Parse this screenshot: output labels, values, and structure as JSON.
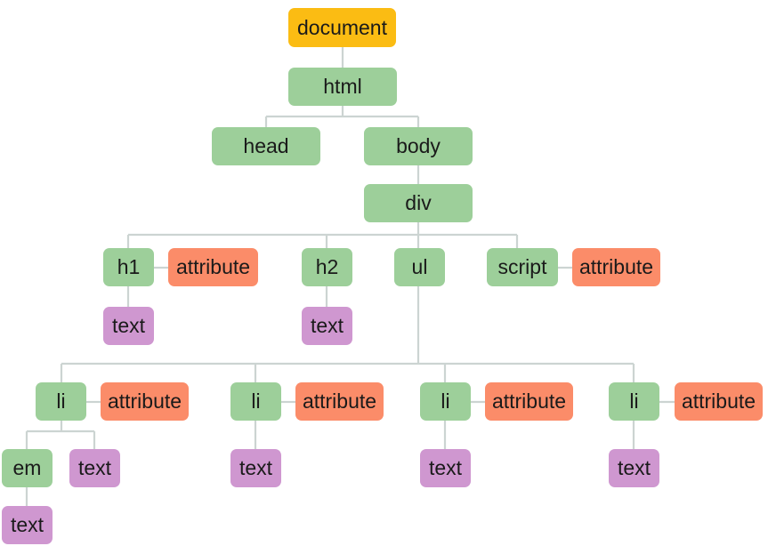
{
  "colors": {
    "document": "#fbbc13",
    "element": "#9dcf9a",
    "attribute": "#fb8c69",
    "text": "#cf97d0",
    "connector": "#ccd4d2"
  },
  "nodes": {
    "document": "document",
    "html": "html",
    "head": "head",
    "body": "body",
    "div": "div",
    "h1": "h1",
    "h1_attribute": "attribute",
    "h1_text": "text",
    "h2": "h2",
    "h2_text": "text",
    "ul": "ul",
    "script": "script",
    "script_attribute": "attribute",
    "li1": "li",
    "li1_attribute": "attribute",
    "em": "em",
    "em_text": "text",
    "li1_text": "text",
    "li2": "li",
    "li2_attribute": "attribute",
    "li2_text": "text",
    "li3": "li",
    "li3_attribute": "attribute",
    "li3_text": "text",
    "li4": "li",
    "li4_attribute": "attribute",
    "li4_text": "text"
  }
}
